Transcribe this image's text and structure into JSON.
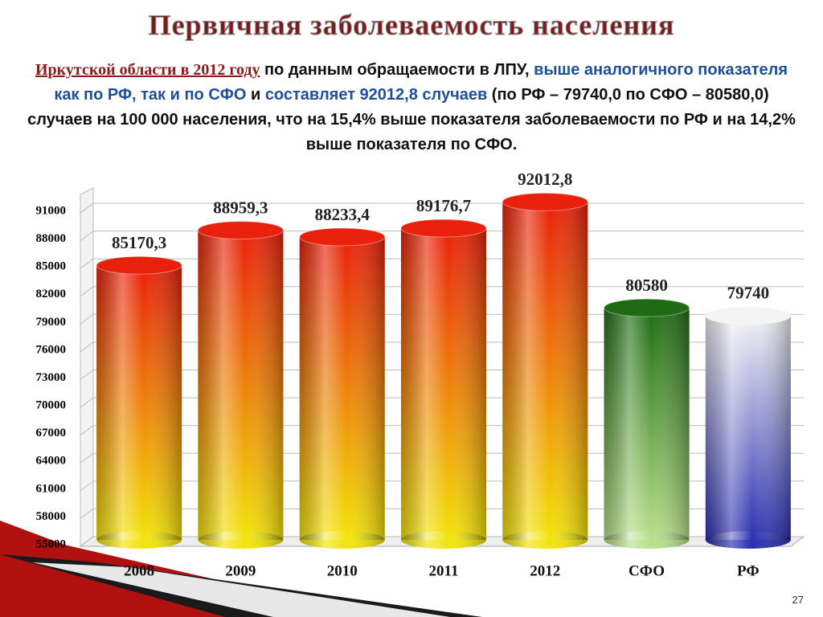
{
  "title": "Первичная заболеваемость населения",
  "summary": [
    {
      "text": "Иркутской области в 2012 году",
      "color": "#8b1a1a"
    },
    {
      "text": " по данным обращаемости в ЛПУ, ",
      "color": "#111111"
    },
    {
      "text": "выше аналогичного показателя как по РФ, так и по СФО",
      "color": "#1f4e9a"
    },
    {
      "text": " и ",
      "color": "#111111"
    },
    {
      "text": "составляет 92012,8 случаев",
      "color": "#1f4e9a"
    },
    {
      "text": " (по РФ – 79740,0 по СФО – 80580,0) случаев на 100 000 населения, что на 15,4% выше показателя заболеваемости по РФ и на 14,2% выше показателя по СФО.",
      "color": "#111111"
    }
  ],
  "page_number": "27",
  "chart_data": {
    "type": "bar",
    "categories": [
      "2008",
      "2009",
      "2010",
      "2011",
      "2012",
      "СФО",
      "РФ"
    ],
    "values": [
      85170.3,
      88959.3,
      88233.4,
      89176.7,
      92012.8,
      80580,
      79740
    ],
    "value_labels": [
      "85170,3",
      "88959,3",
      "88233,4",
      "89176,7",
      "92012,8",
      "80580",
      "79740"
    ],
    "colors": [
      "#e8200c",
      "#e8200c",
      "#e8200c",
      "#e8200c",
      "#e8200c",
      "#1f6b14",
      "#f4f4f4"
    ],
    "bottom_colors": [
      "#f2e40a",
      "#f2e40a",
      "#f2e40a",
      "#f2e40a",
      "#f2e40a",
      "#b9e08a",
      "#2a2fb0"
    ],
    "ylim": [
      55000,
      93000
    ],
    "yticks": [
      55000,
      58000,
      61000,
      64000,
      67000,
      70000,
      73000,
      76000,
      79000,
      82000,
      85000,
      88000,
      91000
    ],
    "grid": true
  }
}
